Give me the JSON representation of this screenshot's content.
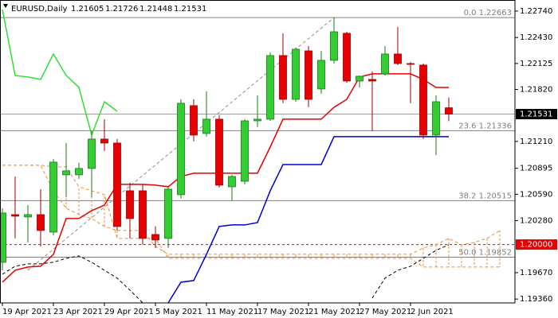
{
  "chart_data": {
    "type": "candlestick",
    "title": "EURUSD,Daily",
    "header_values": [
      1.21605,
      1.21726,
      1.21448,
      1.21531
    ],
    "categories": [
      "19 Apr 2021",
      null,
      null,
      null,
      "23 Apr 2021",
      null,
      null,
      null,
      "29 Apr 2021",
      null,
      null,
      null,
      "5 May 2021",
      null,
      null,
      null,
      "11 May 2021",
      null,
      null,
      null,
      "17 May 2021",
      null,
      null,
      null,
      "21 May 2021",
      null,
      null,
      null,
      "27 May 2021",
      null,
      null,
      null,
      "2 Jun 2021",
      null,
      null,
      null,
      null,
      null,
      null,
      null
    ],
    "open": [
      1.19792,
      1.20351,
      1.20324,
      1.20351,
      1.20146,
      1.20818,
      1.20818,
      1.20893,
      1.21238,
      1.21191,
      1.20631,
      1.20631,
      1.20118,
      1.20072,
      1.20585,
      1.2163,
      1.21303,
      1.21471,
      1.20678,
      1.20743,
      1.21452,
      1.21471,
      1.22218,
      1.21704,
      1.22273,
      1.21826,
      1.22162,
      1.22479,
      1.21919,
      1.21938,
      1.22003,
      1.22236,
      1.22124,
      1.22106,
      1.21285,
      1.21605,
      null,
      null,
      null,
      null
    ],
    "high": [
      1.20426,
      1.20799,
      1.20463,
      1.2065,
      1.21005,
      1.21191,
      1.20958,
      1.21331,
      1.21471,
      1.21238,
      1.20725,
      1.20706,
      1.20212,
      1.20678,
      1.21704,
      1.21704,
      1.21798,
      1.21518,
      1.20818,
      1.21471,
      1.21751,
      1.22255,
      1.22479,
      1.22311,
      1.22329,
      1.22273,
      1.22663,
      1.22497,
      1.21984,
      1.22031,
      1.22329,
      1.22553,
      1.22143,
      1.22124,
      1.21751,
      1.21726,
      null,
      null,
      null,
      null
    ],
    "low": [
      1.19698,
      1.20072,
      1.20025,
      1.19978,
      1.20109,
      1.20557,
      1.20771,
      1.20557,
      1.21098,
      1.20165,
      1.20072,
      1.19997,
      1.1996,
      1.1996,
      1.20538,
      1.2121,
      1.21266,
      1.20669,
      1.20519,
      1.20706,
      1.21378,
      1.21452,
      1.21658,
      1.21676,
      1.21611,
      1.2177,
      1.22124,
      1.219,
      1.21844,
      1.21331,
      1.21984,
      1.22106,
      1.21658,
      1.21238,
      1.21051,
      1.21448,
      null,
      null,
      null,
      null
    ],
    "close": [
      1.2037,
      1.20333,
      1.20351,
      1.20165,
      1.20967,
      1.20865,
      1.20893,
      1.21238,
      1.21191,
      1.20212,
      1.20305,
      1.20072,
      1.20053,
      1.2065,
      1.21658,
      1.21285,
      1.21471,
      1.20697,
      1.20799,
      1.21452,
      1.21471,
      1.22218,
      1.21704,
      1.22292,
      1.21704,
      1.22162,
      1.22497,
      1.21919,
      1.21975,
      1.21919,
      1.22236,
      1.22124,
      1.22115,
      1.21285,
      1.21676,
      1.21531,
      null,
      null,
      null,
      null
    ],
    "up_color": "#33cc33",
    "down_color": "#e60000",
    "ylim": [
      1.19315,
      1.2287
    ],
    "yticks": [
      {
        "value": 1.2274,
        "label": "1.22740"
      },
      {
        "value": 1.2243,
        "label": "1.22430"
      },
      {
        "value": 1.22125,
        "label": "1.22125"
      },
      {
        "value": 1.2182,
        "label": "1.21820"
      },
      {
        "value": 1.2121,
        "label": "1.21210"
      },
      1.20895,
      {
        "value": 1.2059,
        "label": "1.20590"
      },
      {
        "value": 1.2028,
        "label": "1.20280"
      },
      {
        "value": 1.1967,
        "label": "1.19670"
      },
      {
        "value": 1.1936,
        "label": "1.19360"
      }
    ],
    "overlays": [
      {
        "color": "#e60000",
        "dash": false,
        "values": [
          1.19558,
          1.19698,
          1.19736,
          1.19745,
          1.19885,
          1.20305,
          1.20305,
          1.20398,
          1.20463,
          1.20706,
          1.20706,
          1.20706,
          1.20697,
          1.20678,
          1.20799,
          1.20837,
          1.20837,
          1.20837,
          1.20837,
          1.20837,
          1.20837,
          1.21145,
          1.21471,
          1.21471,
          1.21471,
          1.21471,
          1.21611,
          1.21704,
          1.21966,
          1.22003,
          1.22003,
          1.22003,
          1.22003,
          1.21938,
          1.21844,
          1.21844,
          null,
          null,
          null,
          null
        ]
      },
      {
        "color": "#0000cc",
        "dash": false,
        "values": [
          null,
          null,
          null,
          null,
          null,
          null,
          null,
          null,
          null,
          null,
          null,
          null,
          null,
          1.19316,
          1.19558,
          1.19577,
          1.19885,
          1.20212,
          1.2023,
          1.2023,
          1.20258,
          1.20631,
          1.20939,
          1.20939,
          1.20939,
          1.20939,
          1.21266,
          1.21266,
          1.21266,
          1.21266,
          1.21266,
          1.21266,
          1.21266,
          1.21266,
          1.21266,
          1.21266,
          null,
          null,
          null,
          null
        ]
      },
      {
        "color": "#33dd33",
        "dash": false,
        "values": [
          1.22759,
          1.21984,
          1.21966,
          1.21938,
          1.22236,
          1.21984,
          1.21844,
          1.21285,
          1.21676,
          1.21564,
          null,
          null,
          null,
          null,
          null,
          null,
          null,
          null,
          null,
          null,
          null,
          null,
          null,
          null,
          null,
          null,
          null,
          null,
          null,
          null,
          null,
          null,
          null,
          null,
          null,
          null,
          null,
          null,
          null,
          null
        ]
      },
      {
        "color": "#000000",
        "dash": true,
        "values": [
          1.19652,
          1.19745,
          1.19773,
          1.19773,
          1.19792,
          1.19838,
          1.19866,
          1.19792,
          1.19698,
          1.19605,
          1.19465,
          1.19316,
          null,
          null,
          null,
          null,
          null,
          null,
          null,
          null,
          null,
          null,
          null,
          null,
          null,
          null,
          null,
          null,
          null,
          1.19372,
          1.19605,
          1.19698,
          1.19745,
          1.19838,
          1.19932,
          1.19997,
          null,
          null,
          null,
          null
        ]
      }
    ],
    "cloud": {
      "color": "#e8913a",
      "span_a": [
        1.2093,
        1.2093,
        1.2093,
        1.2093,
        1.20631,
        1.20426,
        1.20351,
        1.20305,
        1.20212,
        1.20165,
        1.20165,
        1.20165,
        1.19978,
        1.19885,
        1.19885,
        1.19885,
        1.19885,
        1.19885,
        1.19885,
        1.19885,
        1.19885,
        1.19885,
        1.19885,
        1.19885,
        1.19885,
        1.19885,
        1.19885,
        1.19885,
        1.19885,
        1.19885,
        1.19885,
        1.19885,
        1.19885,
        1.1996,
        1.19997,
        1.20072,
        1.19997,
        1.20025,
        1.20072,
        1.20165
      ],
      "span_b": [
        1.2093,
        1.2093,
        1.2093,
        1.2093,
        1.20911,
        1.20911,
        1.20678,
        1.20631,
        1.20585,
        1.20072,
        1.20072,
        1.20072,
        1.20072,
        1.19838,
        1.19838,
        1.19838,
        1.19838,
        1.19838,
        1.19838,
        1.19838,
        1.19838,
        1.19838,
        1.19838,
        1.19838,
        1.19838,
        1.19838,
        1.19838,
        1.19838,
        1.19838,
        1.19838,
        1.19838,
        1.19838,
        1.19838,
        1.19736,
        1.19736,
        1.19736,
        1.19736,
        1.19736,
        1.19736,
        1.19736
      ]
    },
    "trendline": {
      "x": [
        2,
        26
      ],
      "y": [
        1.19698,
        1.22663
      ],
      "color": "#909090"
    },
    "levels": [
      {
        "value": 1.22663,
        "label": "0.0 1.22663"
      },
      {
        "value": 1.21336,
        "label": "23.6 1.21336"
      },
      {
        "value": 1.20515,
        "label": "38.2 1.20515"
      },
      {
        "value": 1.19852,
        "label": "50.0 1.19852"
      }
    ],
    "level_color": "#808080",
    "alert_level": {
      "value": 1.2,
      "label": "1.20000",
      "color": "#e60000"
    },
    "price_line": {
      "value": 1.21531,
      "color": "#000000"
    }
  }
}
